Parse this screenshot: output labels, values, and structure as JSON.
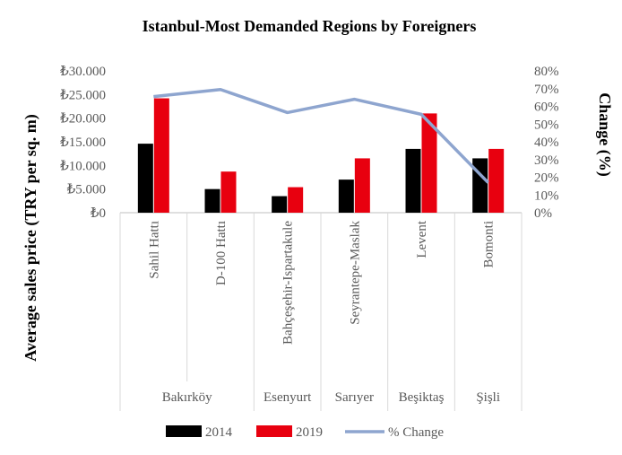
{
  "chart_data": {
    "type": "bar",
    "title": "Istanbul-Most Demanded Regions by Foreigners",
    "ylabel": "Average sales price (TRY per sq. m)",
    "y2label": "Change (%)",
    "categories": [
      "Sahil Hattı",
      "D-100 Hattı",
      "Bahçeşehir-Ispartakule",
      "Seyrantepe-Maslak",
      "Levent",
      "Bomonti"
    ],
    "groups": [
      {
        "label": "Bakırköy",
        "span": 2
      },
      {
        "label": "Esenyurt",
        "span": 1
      },
      {
        "label": "Sarıyer",
        "span": 1
      },
      {
        "label": "Beşiktaş",
        "span": 1
      },
      {
        "label": "Şişli",
        "span": 1
      }
    ],
    "series": [
      {
        "name": "2014",
        "type": "bar",
        "axis": "left",
        "color": "#000000",
        "values": [
          14600,
          5000,
          3500,
          7000,
          13500,
          11500
        ]
      },
      {
        "name": "2019",
        "type": "bar",
        "axis": "left",
        "color": "#e8000f",
        "values": [
          24200,
          8700,
          5400,
          11500,
          21000,
          13500
        ]
      },
      {
        "name": "% Change",
        "type": "line",
        "axis": "right",
        "color": "#8ea5cf",
        "values": [
          65.5,
          69.5,
          56.5,
          64,
          55.5,
          17
        ]
      }
    ],
    "ylim": [
      0,
      30000
    ],
    "y_ticks": [
      "₺0",
      "₺5.000",
      "₺10.000",
      "₺15.000",
      "₺20.000",
      "₺25.000",
      "₺30.000"
    ],
    "y2lim": [
      0,
      80
    ],
    "y2_ticks": [
      "0%",
      "10%",
      "20%",
      "30%",
      "40%",
      "50%",
      "60%",
      "70%",
      "80%"
    ],
    "legend": "bottom",
    "grid": false
  }
}
